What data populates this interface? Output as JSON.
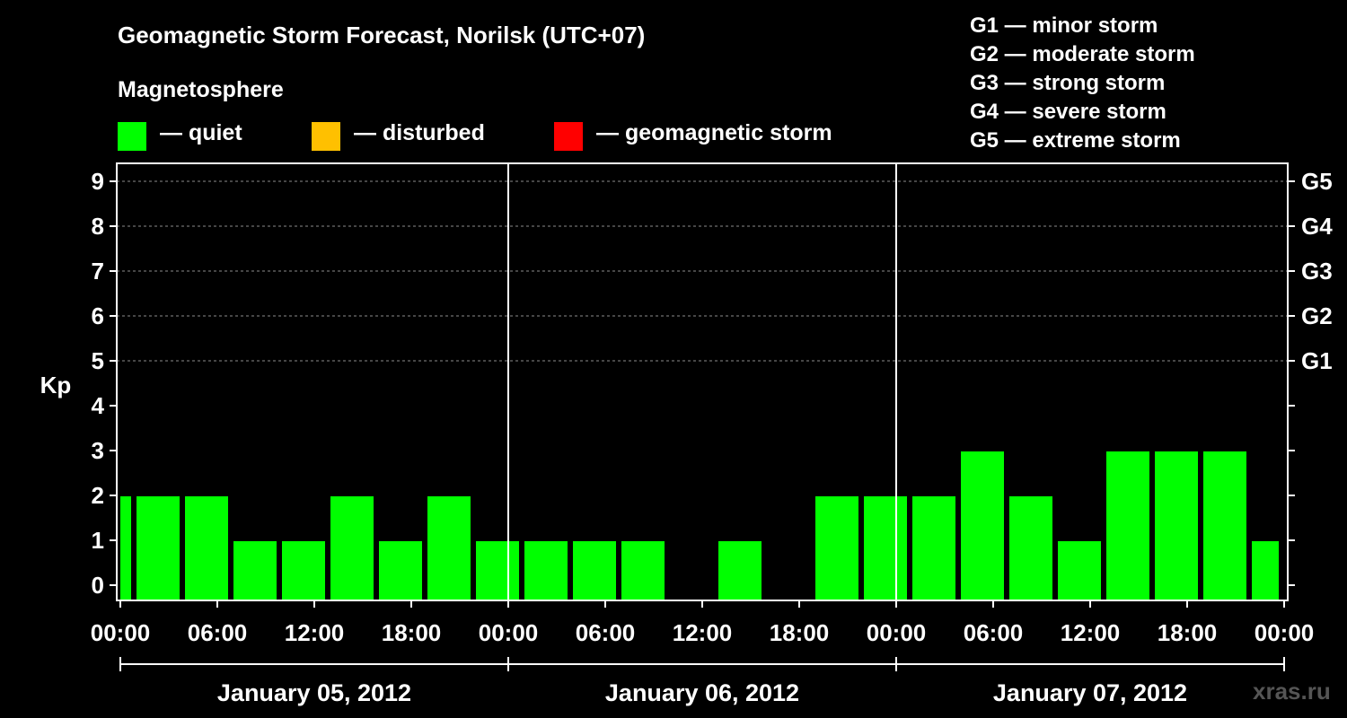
{
  "title": "Geomagnetic Storm Forecast, Norilsk (UTC+07)",
  "magnetosphere_label": "Magnetosphere",
  "legend": [
    {
      "label": "— quiet",
      "color": "#00ff00"
    },
    {
      "label": "— disturbed",
      "color": "#ffc000"
    },
    {
      "label": "— geomagnetic storm",
      "color": "#ff0000"
    }
  ],
  "storm_scale": [
    "G1 — minor storm",
    "G2 — moderate storm",
    "G3 — strong storm",
    "G4 — severe storm",
    "G5 — extreme storm"
  ],
  "watermark": "xras.ru",
  "chart_data": {
    "type": "bar",
    "ylabel": "Kp",
    "ylim": [
      0,
      9
    ],
    "yticks": [
      0,
      1,
      2,
      3,
      4,
      5,
      6,
      7,
      8,
      9
    ],
    "right_ticks": [
      {
        "value": 5,
        "label": "G1"
      },
      {
        "value": 6,
        "label": "G2"
      },
      {
        "value": 7,
        "label": "G3"
      },
      {
        "value": 8,
        "label": "G4"
      },
      {
        "value": 9,
        "label": "G5"
      }
    ],
    "grid": "dashed horizontal at Kp 5–9",
    "x_range_hours": [
      0,
      72
    ],
    "xtick_labels": [
      "00:00",
      "06:00",
      "12:00",
      "18:00",
      "00:00",
      "06:00",
      "12:00",
      "18:00",
      "00:00",
      "06:00",
      "12:00",
      "18:00",
      "00:00"
    ],
    "day_labels": [
      "January 05, 2012",
      "January 06, 2012",
      "January 07, 2012"
    ],
    "bar_color": "#00ff00",
    "bars": [
      {
        "start_hour": 0,
        "kp": 2
      },
      {
        "start_hour": 1,
        "kp": 2
      },
      {
        "start_hour": 4,
        "kp": 2
      },
      {
        "start_hour": 7,
        "kp": 1
      },
      {
        "start_hour": 10,
        "kp": 1
      },
      {
        "start_hour": 13,
        "kp": 2
      },
      {
        "start_hour": 16,
        "kp": 1
      },
      {
        "start_hour": 19,
        "kp": 2
      },
      {
        "start_hour": 22,
        "kp": 1
      },
      {
        "start_hour": 25,
        "kp": 1
      },
      {
        "start_hour": 28,
        "kp": 1
      },
      {
        "start_hour": 31,
        "kp": 1
      },
      {
        "start_hour": 34,
        "kp": 0
      },
      {
        "start_hour": 37,
        "kp": 1
      },
      {
        "start_hour": 40,
        "kp": 0
      },
      {
        "start_hour": 43,
        "kp": 2
      },
      {
        "start_hour": 46,
        "kp": 2
      },
      {
        "start_hour": 49,
        "kp": 2
      },
      {
        "start_hour": 52,
        "kp": 3
      },
      {
        "start_hour": 55,
        "kp": 2
      },
      {
        "start_hour": 58,
        "kp": 1
      },
      {
        "start_hour": 61,
        "kp": 3
      },
      {
        "start_hour": 64,
        "kp": 3
      },
      {
        "start_hour": 67,
        "kp": 3
      },
      {
        "start_hour": 70,
        "kp": 1
      }
    ]
  }
}
